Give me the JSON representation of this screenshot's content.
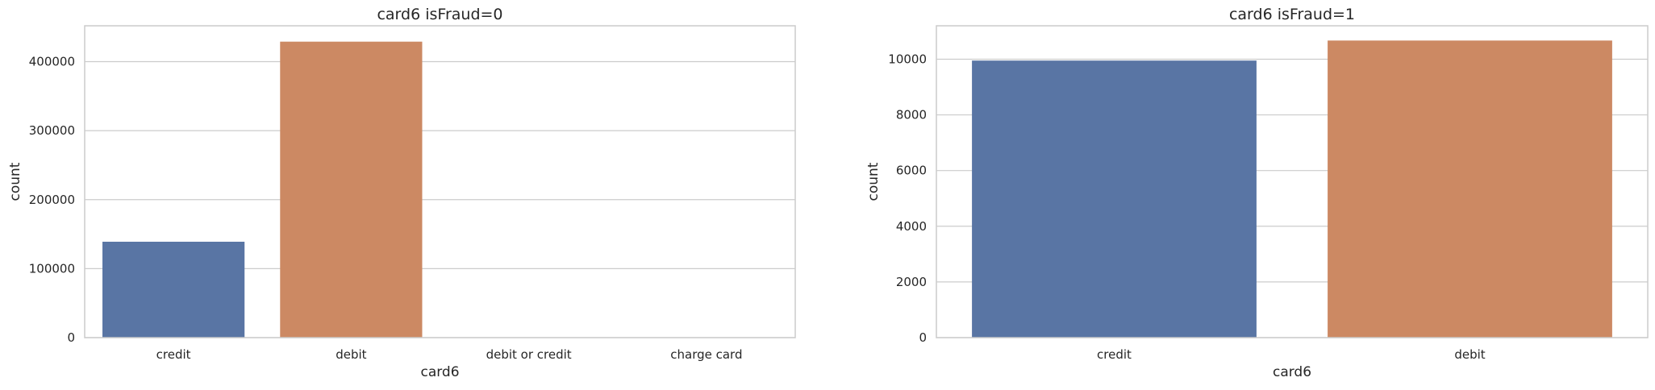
{
  "chart_data": [
    {
      "type": "bar",
      "title": "card6 isFraud=0",
      "xlabel": "card6",
      "ylabel": "count",
      "categories": [
        "credit",
        "debit",
        "debit or credit",
        "charge card"
      ],
      "values": [
        139000,
        429000,
        30,
        15
      ],
      "colors": [
        "#5975a4",
        "#cc8963",
        "#5f9e6e",
        "#b55d60"
      ],
      "ylim": [
        0,
        452000
      ],
      "yticks": [
        0,
        100000,
        200000,
        300000,
        400000
      ],
      "grid": true
    },
    {
      "type": "bar",
      "title": "card6 isFraud=1",
      "xlabel": "card6",
      "ylabel": "count",
      "categories": [
        "credit",
        "debit"
      ],
      "values": [
        9950,
        10670
      ],
      "colors": [
        "#5975a4",
        "#cc8963"
      ],
      "ylim": [
        0,
        11200
      ],
      "yticks": [
        0,
        2000,
        4000,
        6000,
        8000,
        10000
      ],
      "grid": true
    }
  ]
}
